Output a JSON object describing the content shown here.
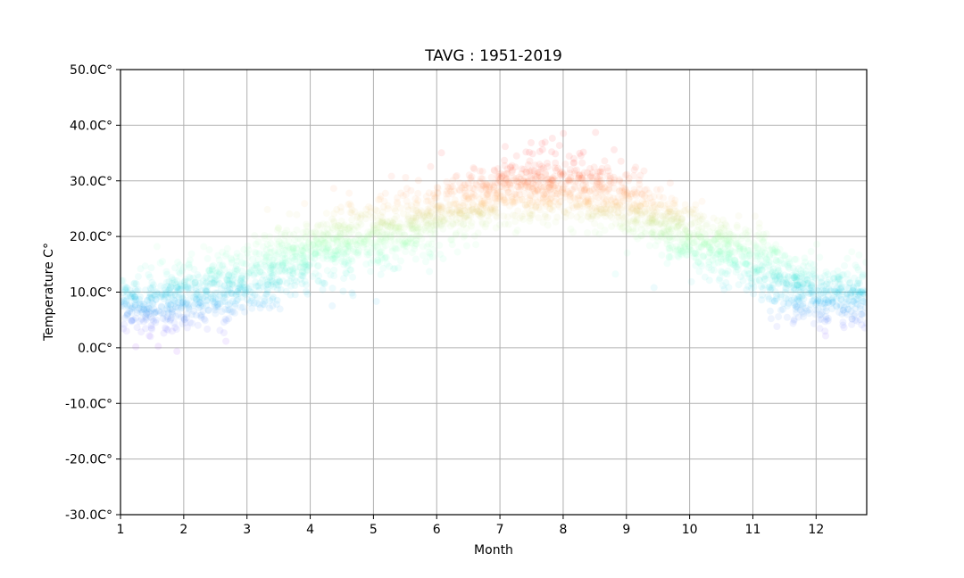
{
  "chart_data": {
    "type": "scatter",
    "title": "TAVG : 1951-2019",
    "xlabel": "Month",
    "ylabel": "Temperature C°",
    "xlim": [
      1,
      12.8
    ],
    "ylim": [
      -30,
      50
    ],
    "x_ticks": [
      1,
      2,
      3,
      4,
      5,
      6,
      7,
      8,
      9,
      10,
      11,
      12
    ],
    "x_tick_labels": [
      "1",
      "2",
      "3",
      "4",
      "5",
      "6",
      "7",
      "8",
      "9",
      "10",
      "11",
      "12"
    ],
    "y_ticks": [
      -30,
      -20,
      -10,
      0,
      10,
      20,
      30,
      40,
      50
    ],
    "y_tick_labels": [
      "-30.0C°",
      "-20.0C°",
      "-10.0C°",
      "0.0C°",
      "10.0C°",
      "20.0C°",
      "30.0C°",
      "40.0C°",
      "50.0C°"
    ],
    "grid": true,
    "colormap": "rainbow",
    "color_range": [
      0,
      35
    ],
    "marker_alpha": 0.08,
    "monthly_profile": [
      {
        "month": 1,
        "mean": 7.5,
        "spread": 2.6
      },
      {
        "month": 2,
        "mean": 8.5,
        "spread": 3.2
      },
      {
        "month": 3,
        "mean": 12.5,
        "spread": 3.4
      },
      {
        "month": 4,
        "mean": 17.0,
        "spread": 3.4
      },
      {
        "month": 5,
        "mean": 20.5,
        "spread": 3.2
      },
      {
        "month": 6,
        "mean": 23.5,
        "spread": 3.0
      },
      {
        "month": 7,
        "mean": 28.0,
        "spread": 2.8
      },
      {
        "month": 8,
        "mean": 29.0,
        "spread": 3.0
      },
      {
        "month": 9,
        "mean": 26.0,
        "spread": 3.2
      },
      {
        "month": 10,
        "mean": 20.0,
        "spread": 3.0
      },
      {
        "month": 11,
        "mean": 15.5,
        "spread": 3.0
      },
      {
        "month": 12,
        "mean": 9.5,
        "spread": 2.8
      }
    ]
  }
}
